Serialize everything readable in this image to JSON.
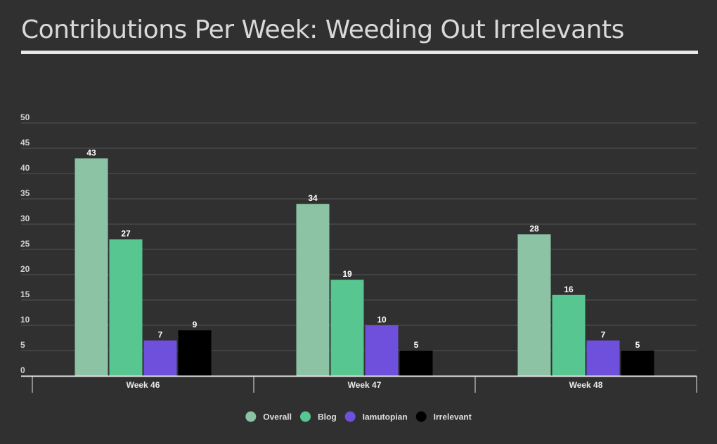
{
  "chart_data": {
    "type": "bar",
    "title": "Contributions Per Week: Weeding Out Irrelevants",
    "xlabel": "",
    "ylabel": "",
    "categories": [
      "Week 46",
      "Week 47",
      "Week 48"
    ],
    "series": [
      {
        "name": "Overall",
        "values": [
          43,
          34,
          28
        ],
        "color": "#8dc3a5"
      },
      {
        "name": "Blog",
        "values": [
          27,
          19,
          16
        ],
        "color": "#58c690"
      },
      {
        "name": "Iamutopian",
        "values": [
          7,
          10,
          7
        ],
        "color": "#6e50dc"
      },
      {
        "name": "Irrelevant",
        "values": [
          9,
          5,
          5
        ],
        "color": "#000000"
      }
    ],
    "ylim": [
      0,
      50
    ],
    "yticks": [
      0,
      5,
      10,
      15,
      20,
      25,
      30,
      35,
      40,
      45,
      50
    ],
    "grid": true,
    "legend": "bottom-center",
    "data_labels": true
  }
}
